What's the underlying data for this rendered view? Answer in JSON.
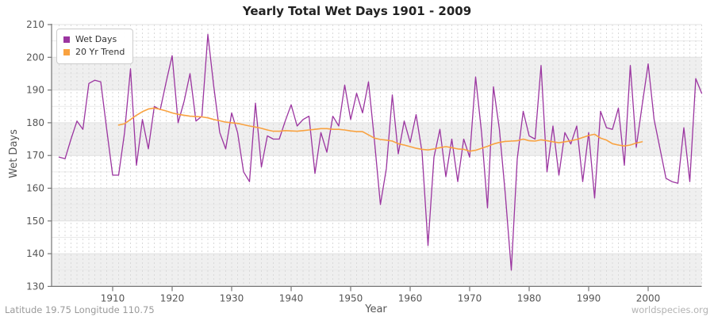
{
  "page": {
    "footer_left": "Latitude 19.75 Longitude 110.75",
    "footer_right": "worldspecies.org"
  },
  "chart_data": {
    "type": "line",
    "title": "Yearly Total Wet Days 1901 - 2009",
    "xlabel": "Year",
    "ylabel": "Wet Days",
    "xlim": [
      1901,
      2009
    ],
    "ylim": [
      130,
      210
    ],
    "x_ticks": [
      1910,
      1920,
      1930,
      1940,
      1950,
      1960,
      1970,
      1980,
      1990,
      2000
    ],
    "y_ticks": [
      130,
      140,
      150,
      160,
      170,
      180,
      190,
      200,
      210
    ],
    "grid": {
      "vertical_dashed_per_year": true,
      "alternating_bands": true,
      "band_color": "#efefef",
      "major_line_color": "#e0e0e0",
      "minor_line_color": "#e9e9e9",
      "vline_color": "#d9d9d9"
    },
    "legend": {
      "position": "top-left",
      "items": [
        {
          "label": "Wet Days",
          "color": "#9b35a0"
        },
        {
          "label": "20 Yr Trend",
          "color": "#f9a240"
        }
      ]
    },
    "series": [
      {
        "name": "Wet Days",
        "color": "#9b35a0",
        "width": 1.3,
        "x_start": 1901,
        "values": [
          169.5,
          169,
          175,
          180.5,
          178,
          192,
          193,
          192.5,
          178,
          164,
          164,
          177,
          196.5,
          167,
          181,
          172,
          185,
          184,
          192.5,
          200.5,
          180,
          186.5,
          195,
          180.5,
          182,
          207,
          191,
          177,
          172,
          183,
          177,
          165,
          162,
          186,
          166.5,
          176,
          175,
          175,
          180.5,
          185.5,
          179,
          181,
          182,
          164.5,
          177,
          171,
          182,
          179,
          191.5,
          181,
          189,
          183,
          192.5,
          174.5,
          155,
          166,
          188.5,
          170.5,
          180.5,
          174,
          182.5,
          171,
          142.5,
          169.5,
          178,
          163.5,
          175,
          162,
          175,
          169.5,
          194,
          177,
          154,
          191,
          178,
          158,
          135,
          169,
          183.5,
          176,
          175,
          197.5,
          165,
          179,
          164,
          177,
          173.5,
          179,
          162,
          177,
          157,
          183.5,
          178.5,
          178,
          184.5,
          167,
          197.5,
          172.5,
          185.5,
          198,
          181,
          172,
          163,
          162,
          161.5,
          178.5,
          162,
          193.5,
          189
        ]
      },
      {
        "name": "20 Yr Trend",
        "color": "#f9a240",
        "width": 1.6,
        "x_start": 1911,
        "values": [
          179.3,
          179.7,
          181,
          182.3,
          183.4,
          184.2,
          184.5,
          184.1,
          183.6,
          183,
          182.6,
          182.3,
          182,
          181.9,
          181.8,
          181.5,
          181,
          180.6,
          180.2,
          180,
          179.8,
          179.4,
          179,
          178.7,
          178.3,
          177.8,
          177.4,
          177.4,
          177.6,
          177.5,
          177.4,
          177.6,
          177.8,
          178,
          178.2,
          178.2,
          178,
          178,
          177.8,
          177.5,
          177.3,
          177.3,
          176.3,
          175.3,
          174.9,
          174.7,
          174.4,
          173.6,
          173.2,
          172.7,
          172.2,
          171.9,
          171.7,
          172,
          172.4,
          172.7,
          172.4,
          172,
          171.9,
          171.3,
          171.6,
          172.2,
          172.8,
          173.5,
          174,
          174.3,
          174.4,
          174.5,
          175,
          174.5,
          174.4,
          174.8,
          174.5,
          174.2,
          173.9,
          174.2,
          174.5,
          174.9,
          175.5,
          176.1,
          176.5,
          175.3,
          174.7,
          173.6,
          173.2,
          172.9,
          173.2,
          173.8,
          174.2
        ]
      }
    ]
  }
}
